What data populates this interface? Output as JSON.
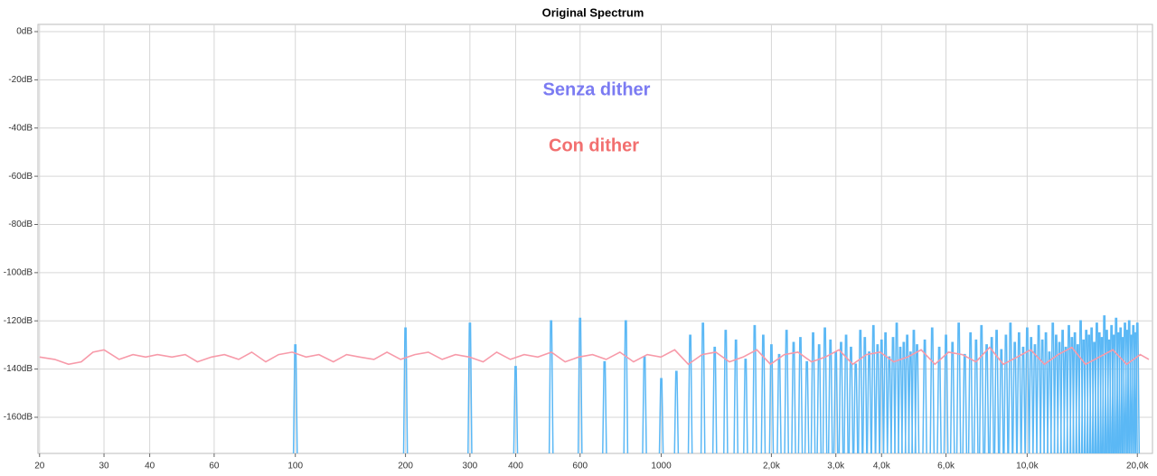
{
  "chart_data": {
    "type": "line",
    "title": "Original Spectrum",
    "xscale": "log",
    "xlim": [
      19.8,
      22000
    ],
    "ylim": [
      -175,
      3
    ],
    "grid": true,
    "xticks": [
      20,
      30,
      40,
      60,
      100,
      200,
      300,
      400,
      600,
      1000,
      {
        "value": 2000,
        "label": "2,0k"
      },
      {
        "value": 3000,
        "label": "3,0k"
      },
      {
        "value": 4000,
        "label": "4,0k"
      },
      {
        "value": 6000,
        "label": "6,0k"
      },
      {
        "value": 10000,
        "label": "10,0k"
      },
      {
        "value": 20000,
        "label": "20,0k"
      }
    ],
    "yticks": [
      {
        "value": 0,
        "label": "0dB"
      },
      {
        "value": -20,
        "label": "-20dB"
      },
      {
        "value": -40,
        "label": "-40dB"
      },
      {
        "value": -60,
        "label": "-60dB"
      },
      {
        "value": -80,
        "label": "-80dB"
      },
      {
        "value": -100,
        "label": "-100dB"
      },
      {
        "value": -120,
        "label": "-120dB"
      },
      {
        "value": -140,
        "label": "-140dB"
      },
      {
        "value": -160,
        "label": "-160dB"
      }
    ],
    "annotations": [
      {
        "text": "Senza dither",
        "color": "#7b7bf2"
      },
      {
        "text": "Con dither",
        "color": "#f26f6f"
      }
    ],
    "series": [
      {
        "color": "#5bb8f5",
        "mark": "spike",
        "x": [
          100,
          200,
          300,
          400,
          500,
          600,
          700,
          800,
          900,
          1000,
          1100,
          1200,
          1300,
          1400,
          1500,
          1600,
          1700,
          1800,
          1900,
          2000,
          2100,
          2200,
          2300,
          2400,
          2500,
          2600,
          2700,
          2800,
          2900,
          3000,
          3100,
          3200,
          3300,
          3400,
          3500,
          3600,
          3700,
          3800,
          3900,
          4000,
          4100,
          4200,
          4300,
          4400,
          4500,
          4600,
          4700,
          4800,
          4900,
          5000,
          5250,
          5500,
          5750,
          6000,
          6250,
          6500,
          6750,
          7000,
          7250,
          7500,
          7750,
          8000,
          8250,
          8500,
          8750,
          9000,
          9250,
          9500,
          9750,
          10000,
          10250,
          10500,
          10750,
          11000,
          11250,
          11500,
          11750,
          12000,
          12250,
          12500,
          12750,
          13000,
          13250,
          13500,
          13750,
          14000,
          14250,
          14500,
          14750,
          15000,
          15250,
          15500,
          15750,
          16000,
          16250,
          16500,
          16750,
          17000,
          17250,
          17500,
          17750,
          18000,
          18250,
          18500,
          18750,
          19000,
          19250,
          19500,
          19750,
          20000
        ],
        "values": [
          -130,
          -123,
          -121,
          -139,
          -120,
          -119,
          -137,
          -120,
          -135,
          -144,
          -141,
          -126,
          -121,
          -131,
          -124,
          -128,
          -136,
          -122,
          -126,
          -130,
          -134,
          -124,
          -129,
          -127,
          -137,
          -125,
          -130,
          -123,
          -128,
          -133,
          -129,
          -126,
          -131,
          -138,
          -124,
          -127,
          -133,
          -122,
          -130,
          -128,
          -125,
          -135,
          -127,
          -121,
          -131,
          -129,
          -126,
          -133,
          -124,
          -130,
          -128,
          -123,
          -131,
          -126,
          -129,
          -121,
          -134,
          -125,
          -128,
          -122,
          -130,
          -127,
          -124,
          -132,
          -126,
          -121,
          -129,
          -125,
          -131,
          -123,
          -127,
          -130,
          -122,
          -128,
          -125,
          -133,
          -121,
          -126,
          -129,
          -124,
          -131,
          -122,
          -127,
          -125,
          -130,
          -120,
          -128,
          -124,
          -126,
          -123,
          -129,
          -121,
          -125,
          -127,
          -118,
          -124,
          -128,
          -122,
          -126,
          -119,
          -125,
          -123,
          -127,
          -121,
          -124,
          -120,
          -126,
          -122,
          -125,
          -121
        ]
      },
      {
        "color": "#f79aa9",
        "mark": "line",
        "x": [
          20,
          22,
          24,
          26,
          28,
          30,
          33,
          36,
          39,
          42,
          46,
          50,
          54,
          59,
          64,
          70,
          76,
          83,
          90,
          98,
          107,
          116,
          127,
          138,
          150,
          164,
          178,
          194,
          212,
          231,
          252,
          274,
          299,
          326,
          355,
          387,
          422,
          460,
          501,
          546,
          595,
          649,
          707,
          771,
          840,
          916,
          998,
          1088,
          1186,
          1293,
          1409,
          1536,
          1674,
          1825,
          1989,
          2168,
          2363,
          2576,
          2808,
          3060,
          3336,
          3636,
          3963,
          4320,
          4709,
          5132,
          5594,
          6098,
          6647,
          7245,
          7897,
          8608,
          9382,
          10227,
          11147,
          12151,
          13244,
          14436,
          15736,
          17152,
          18695,
          20378,
          21500
        ],
        "values": [
          -135,
          -136,
          -138,
          -137,
          -133,
          -132,
          -136,
          -134,
          -135,
          -134,
          -135,
          -134,
          -137,
          -135,
          -134,
          -136,
          -133,
          -137,
          -134,
          -133,
          -135,
          -134,
          -137,
          -134,
          -135,
          -136,
          -133,
          -136,
          -134,
          -133,
          -136,
          -134,
          -135,
          -137,
          -133,
          -136,
          -134,
          -135,
          -133,
          -137,
          -135,
          -134,
          -136,
          -133,
          -137,
          -134,
          -135,
          -132,
          -138,
          -134,
          -133,
          -137,
          -135,
          -132,
          -138,
          -134,
          -133,
          -137,
          -135,
          -132,
          -138,
          -134,
          -133,
          -137,
          -135,
          -132,
          -138,
          -133,
          -134,
          -137,
          -131,
          -138,
          -135,
          -132,
          -138,
          -134,
          -131,
          -138,
          -135,
          -132,
          -138,
          -134,
          -136
        ]
      }
    ]
  }
}
